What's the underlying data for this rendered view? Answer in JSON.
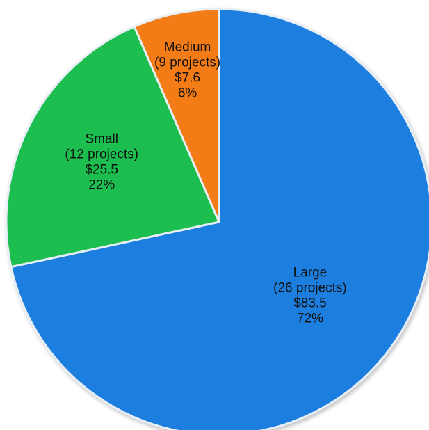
{
  "chart_data": {
    "type": "pie",
    "slices": [
      {
        "name": "Large",
        "projects": "(26 projects)",
        "value": 83.5,
        "value_label": "$83.5",
        "percent": 72,
        "percent_label": "72%",
        "color": "#1f7fe0"
      },
      {
        "name": "Small",
        "projects": "(12 projects)",
        "value": 25.5,
        "value_label": "$25.5",
        "percent": 22,
        "percent_label": "22%",
        "color": "#1fbf4f"
      },
      {
        "name": "Medium",
        "projects": "(9 projects)",
        "value": 7.6,
        "value_label": "$7.6",
        "percent": 6,
        "percent_label": "6%",
        "color": "#f47c12"
      }
    ]
  }
}
